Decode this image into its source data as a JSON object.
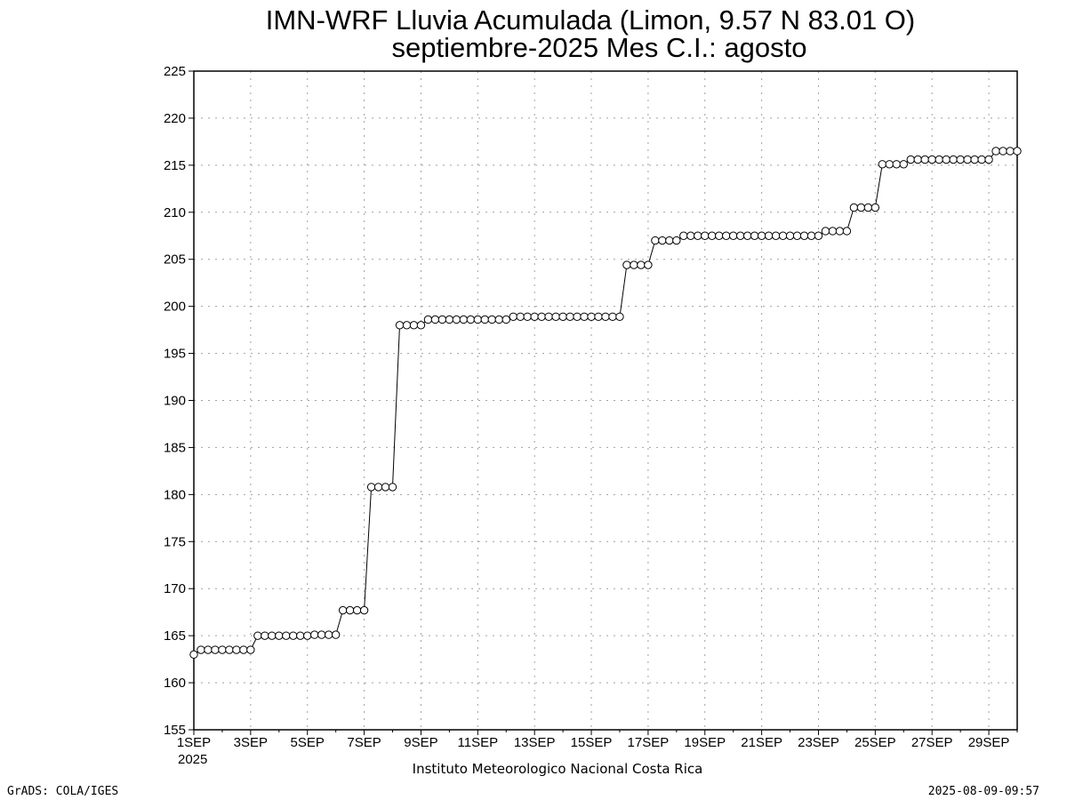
{
  "chart_data": {
    "type": "line",
    "title_line1": "IMN-WRF  Lluvia Acumulada (Limon, 9.57  N 83.01  O)",
    "title_line2": "septiembre-2025 Mes C.I.: agosto",
    "xlabel": "",
    "ylabel": "",
    "credit": "Instituto Meteorologico Nacional Costa Rica",
    "footer_left": "GrADS: COLA/IGES",
    "footer_right": "2025-08-09-09:57",
    "x_tick_labels": [
      "1SEP",
      "3SEP",
      "5SEP",
      "7SEP",
      "9SEP",
      "11SEP",
      "13SEP",
      "15SEP",
      "17SEP",
      "19SEP",
      "21SEP",
      "23SEP",
      "25SEP",
      "27SEP",
      "29SEP"
    ],
    "x_year_label": "2025",
    "y_ticks": [
      155,
      160,
      165,
      170,
      175,
      180,
      185,
      190,
      195,
      200,
      205,
      210,
      215,
      220,
      225
    ],
    "ylim": [
      155,
      225
    ],
    "xlim_days": [
      1,
      30
    ],
    "grid": true,
    "marker": "open-circle",
    "series": [
      {
        "time_step": "6h",
        "start": "2025-09-01 00:00",
        "values": [
          163.0,
          163.5,
          163.5,
          163.5,
          163.5,
          163.5,
          163.5,
          163.5,
          163.5,
          165.0,
          165.0,
          165.0,
          165.0,
          165.0,
          165.0,
          165.0,
          165.0,
          165.1,
          165.1,
          165.1,
          165.1,
          167.7,
          167.7,
          167.7,
          167.7,
          180.8,
          180.8,
          180.8,
          180.8,
          198.0,
          198.0,
          198.0,
          198.0,
          198.6,
          198.6,
          198.6,
          198.6,
          198.6,
          198.6,
          198.6,
          198.6,
          198.6,
          198.6,
          198.6,
          198.6,
          198.9,
          198.9,
          198.9,
          198.9,
          198.9,
          198.9,
          198.9,
          198.9,
          198.9,
          198.9,
          198.9,
          198.9,
          198.9,
          198.9,
          198.9,
          198.9,
          204.4,
          204.4,
          204.4,
          204.4,
          207.0,
          207.0,
          207.0,
          207.0,
          207.5,
          207.5,
          207.5,
          207.5,
          207.5,
          207.5,
          207.5,
          207.5,
          207.5,
          207.5,
          207.5,
          207.5,
          207.5,
          207.5,
          207.5,
          207.5,
          207.5,
          207.5,
          207.5,
          207.5,
          208.0,
          208.0,
          208.0,
          208.0,
          210.5,
          210.5,
          210.5,
          210.5,
          215.1,
          215.1,
          215.1,
          215.1,
          215.6,
          215.6,
          215.6,
          215.6,
          215.6,
          215.6,
          215.6,
          215.6,
          215.6,
          215.6,
          215.6,
          215.6,
          216.5,
          216.5,
          216.5,
          216.5
        ]
      }
    ]
  }
}
